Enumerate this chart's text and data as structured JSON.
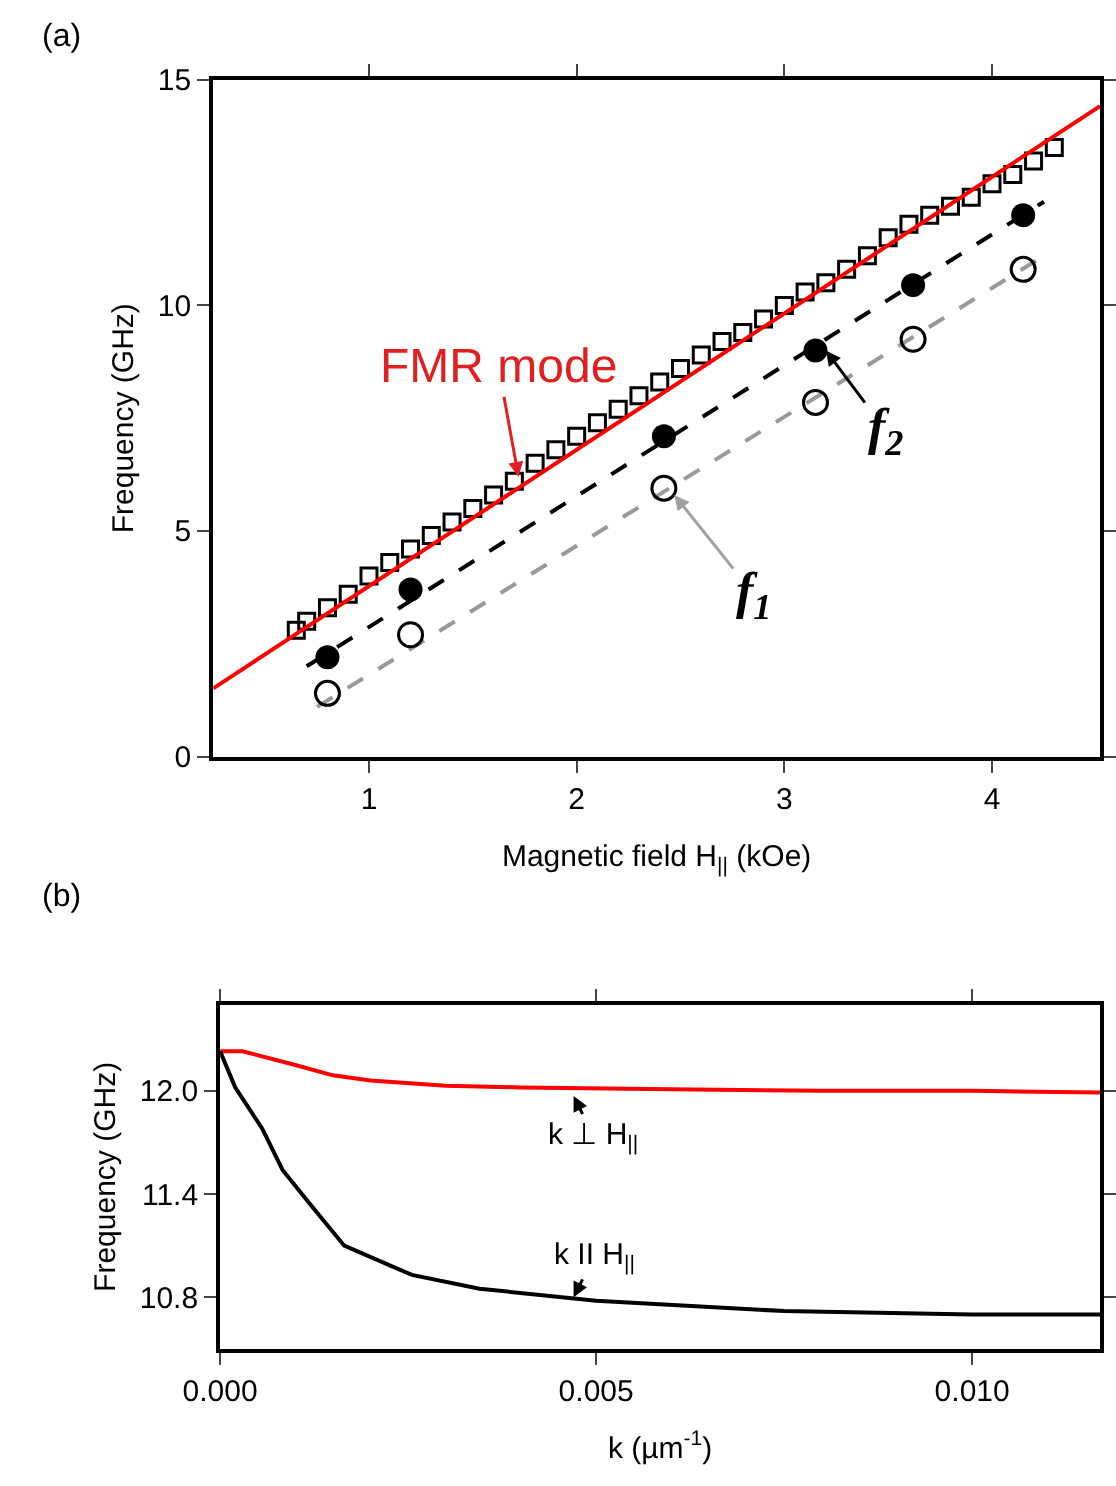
{
  "chart_data": [
    {
      "type": "scatter",
      "xlabel": "Magnetic field H$_{||}$ (kOe)",
      "ylabel": "Frequency (GHz)",
      "xlim": [
        0.25,
        4.52
      ],
      "ylim": [
        0,
        15
      ],
      "xticks": [
        1,
        2,
        3,
        4
      ],
      "yticks": [
        0,
        5,
        10,
        15
      ],
      "series": [
        {
          "type": "scatter",
          "marker": "square-open",
          "color": "#000000",
          "x": [
            0.65,
            0.7,
            0.8,
            0.9,
            1.0,
            1.1,
            1.2,
            1.3,
            1.4,
            1.5,
            1.6,
            1.7,
            1.8,
            1.9,
            2.0,
            2.1,
            2.2,
            2.3,
            2.4,
            2.5,
            2.6,
            2.7,
            2.8,
            2.9,
            3.0,
            3.1,
            3.2,
            3.3,
            3.4,
            3.5,
            3.6,
            3.7,
            3.8,
            3.9,
            4.0,
            4.1,
            4.2,
            4.3
          ],
          "values": [
            2.8,
            3.0,
            3.3,
            3.6,
            4.0,
            4.3,
            4.6,
            4.9,
            5.2,
            5.5,
            5.8,
            6.1,
            6.5,
            6.8,
            7.1,
            7.4,
            7.7,
            8.0,
            8.3,
            8.6,
            8.9,
            9.2,
            9.4,
            9.7,
            10.0,
            10.3,
            10.5,
            10.8,
            11.1,
            11.5,
            11.8,
            12.0,
            12.2,
            12.4,
            12.7,
            12.9,
            13.2,
            13.5
          ]
        },
        {
          "type": "line",
          "line_style": "solid",
          "color": "#ff0000",
          "x": [
            0.25,
            4.52
          ],
          "values": [
            1.51,
            14.42
          ]
        },
        {
          "type": "line",
          "line_style": "dashed",
          "color": "#000000",
          "x": [
            0.7,
            4.25
          ],
          "values": [
            2.0,
            12.3
          ]
        },
        {
          "type": "line",
          "line_style": "dashed",
          "color": "#999999",
          "x": [
            0.75,
            4.25
          ],
          "values": [
            1.1,
            11.1
          ]
        },
        {
          "type": "scatter",
          "marker": "circle",
          "color": "#000000",
          "x": [
            0.8,
            1.2,
            2.42,
            3.15,
            3.62,
            4.15
          ],
          "values": [
            2.2,
            3.7,
            7.1,
            9.0,
            10.45,
            12.0
          ]
        },
        {
          "type": "scatter",
          "marker": "circle-open",
          "color": "#000000",
          "x": [
            0.8,
            1.2,
            2.42,
            3.15,
            3.62,
            4.15
          ],
          "values": [
            1.4,
            2.7,
            5.95,
            7.85,
            9.25,
            10.8
          ]
        }
      ],
      "annotations": [
        "(a)",
        {
          "text": "FMR mode",
          "x": 1.72,
          "y": 6.2
        },
        {
          "text": "f$_{2}$",
          "x": 3.2,
          "y": 9.0
        },
        {
          "text": "f$_{1}$",
          "x": 2.47,
          "y": 5.8
        }
      ]
    },
    {
      "type": "line",
      "xlabel": "k (µm$^{-1}$)",
      "ylabel": "Frequency (GHz)",
      "xlim": [
        0,
        0.0117
      ],
      "ylim": [
        10.5,
        12.5
      ],
      "xticks": [
        {
          "value": 0,
          "label": "0.000"
        },
        0.005,
        {
          "value": 0.01,
          "label": "0.010"
        }
      ],
      "yticks": [
        {
          "value": 10.8,
          "label": "10.8"
        },
        11.4,
        {
          "value": 12,
          "label": "12.0"
        }
      ],
      "series": [
        {
          "color": "#ff0000",
          "x": [
            0,
            0.0003,
            0.001,
            0.0015,
            0.002,
            0.003,
            0.004,
            0.006,
            0.008,
            0.01,
            0.0117
          ],
          "values": [
            12.23,
            12.23,
            12.15,
            12.09,
            12.06,
            12.03,
            12.02,
            12.01,
            12.0,
            12.0,
            11.99
          ]
        },
        {
          "color": "#000000",
          "x": [
            0,
            0.0002,
            0.00056,
            0.00083,
            0.0012,
            0.00165,
            0.00255,
            0.00345,
            0.005,
            0.0075,
            0.01,
            0.0117
          ],
          "values": [
            12.23,
            12.02,
            11.78,
            11.54,
            11.34,
            11.1,
            10.93,
            10.85,
            10.78,
            10.72,
            10.7,
            10.7
          ]
        }
      ],
      "annotations": [
        "(b)",
        {
          "text": "k ⊥ H$_{||}$",
          "x": 0.0047,
          "y": 11.97
        },
        {
          "text": "k II H$_{||}$",
          "x": 0.0047,
          "y": 10.8
        }
      ]
    }
  ]
}
